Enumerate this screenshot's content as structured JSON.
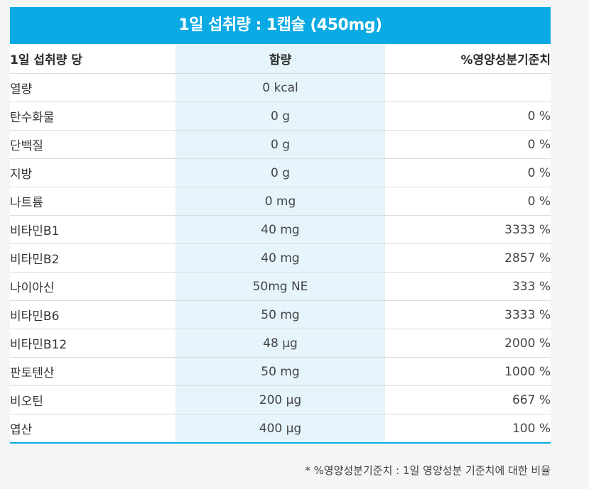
{
  "table_title": "1일 섭취량 : 1캡슐 (450mg)",
  "headers": {
    "name": "1일 섭취량 당",
    "amount": "함량",
    "daily_value": "%영양성분기준치"
  },
  "rows": [
    {
      "name": "열량",
      "amount": "0 kcal",
      "dv": ""
    },
    {
      "name": "탄수화물",
      "amount": "0 g",
      "dv": "0 %"
    },
    {
      "name": "단백질",
      "amount": "0 g",
      "dv": "0 %"
    },
    {
      "name": "지방",
      "amount": "0 g",
      "dv": "0 %"
    },
    {
      "name": "나트륨",
      "amount": "0 mg",
      "dv": "0 %"
    },
    {
      "name": "비타민B1",
      "amount": "40 mg",
      "dv": "3333 %"
    },
    {
      "name": "비타민B2",
      "amount": "40 mg",
      "dv": "2857 %"
    },
    {
      "name": "나이아신",
      "amount": "50mg NE",
      "dv": "333 %"
    },
    {
      "name": "비타민B6",
      "amount": "50 mg",
      "dv": "3333 %"
    },
    {
      "name": "비타민B12",
      "amount": "48 µg",
      "dv": "2000 %"
    },
    {
      "name": "판토텐산",
      "amount": "50 mg",
      "dv": "1000 %"
    },
    {
      "name": "비오틴",
      "amount": "200 µg",
      "dv": "667 %"
    },
    {
      "name": "엽산",
      "amount": "400 µg",
      "dv": "100 %"
    }
  ],
  "footnote": "* %영양성분기준치 : 1일 영양성분 기준치에 대한 비율",
  "colors": {
    "accent": "#0aaae4",
    "amount_column_bg": "#e6f4fb"
  }
}
